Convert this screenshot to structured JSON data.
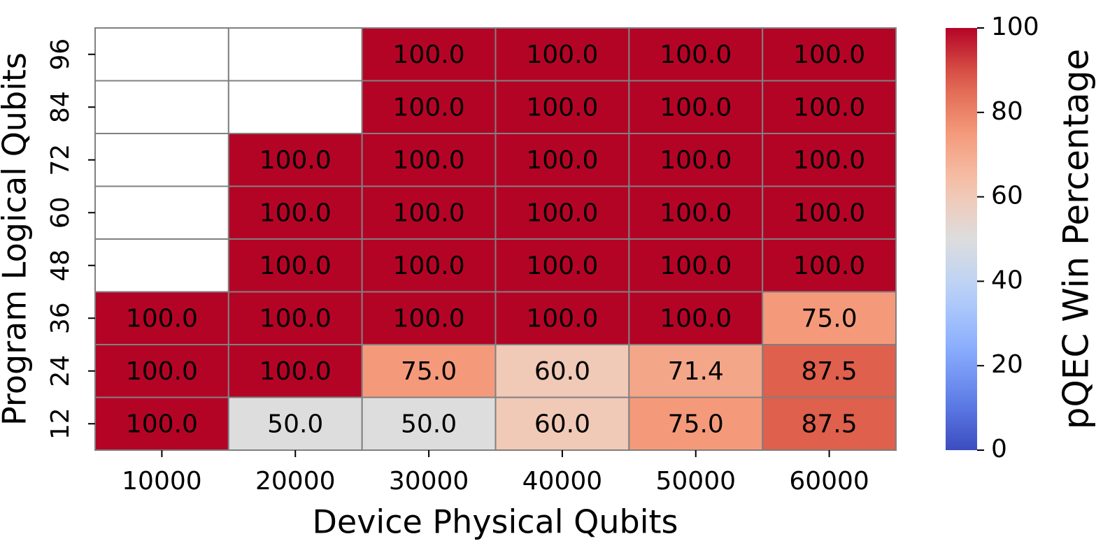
{
  "chart_data": {
    "type": "heatmap",
    "xlabel": "Device Physical Qubits",
    "ylabel": "Program Logical Qubits",
    "categories": [
      "10000",
      "20000",
      "30000",
      "40000",
      "50000",
      "60000"
    ],
    "y_categories": [
      "96",
      "84",
      "72",
      "60",
      "48",
      "36",
      "24",
      "12"
    ],
    "values": [
      [
        null,
        null,
        100,
        100,
        100,
        100
      ],
      [
        null,
        null,
        100,
        100,
        100,
        100
      ],
      [
        null,
        100,
        100,
        100,
        100,
        100
      ],
      [
        null,
        100,
        100,
        100,
        100,
        100
      ],
      [
        null,
        100,
        100,
        100,
        100,
        100
      ],
      [
        100,
        100,
        100,
        100,
        100,
        75
      ],
      [
        100,
        100,
        75,
        60,
        71.4,
        87.5
      ],
      [
        100,
        50,
        50,
        60,
        75,
        87.5
      ]
    ],
    "value_labels": [
      [
        null,
        null,
        "100.0",
        "100.0",
        "100.0",
        "100.0"
      ],
      [
        null,
        null,
        "100.0",
        "100.0",
        "100.0",
        "100.0"
      ],
      [
        null,
        "100.0",
        "100.0",
        "100.0",
        "100.0",
        "100.0"
      ],
      [
        null,
        "100.0",
        "100.0",
        "100.0",
        "100.0",
        "100.0"
      ],
      [
        null,
        "100.0",
        "100.0",
        "100.0",
        "100.0",
        "100.0"
      ],
      [
        "100.0",
        "100.0",
        "100.0",
        "100.0",
        "100.0",
        "75.0"
      ],
      [
        "100.0",
        "100.0",
        "75.0",
        "60.0",
        "71.4",
        "87.5"
      ],
      [
        "100.0",
        "50.0",
        "50.0",
        "60.0",
        "75.0",
        "87.5"
      ]
    ],
    "colormap": "coolwarm",
    "colorbar_label": "pQEC Win Percentage",
    "clim": [
      0,
      100
    ],
    "cticks": [
      0,
      20,
      40,
      60,
      80,
      100
    ]
  }
}
